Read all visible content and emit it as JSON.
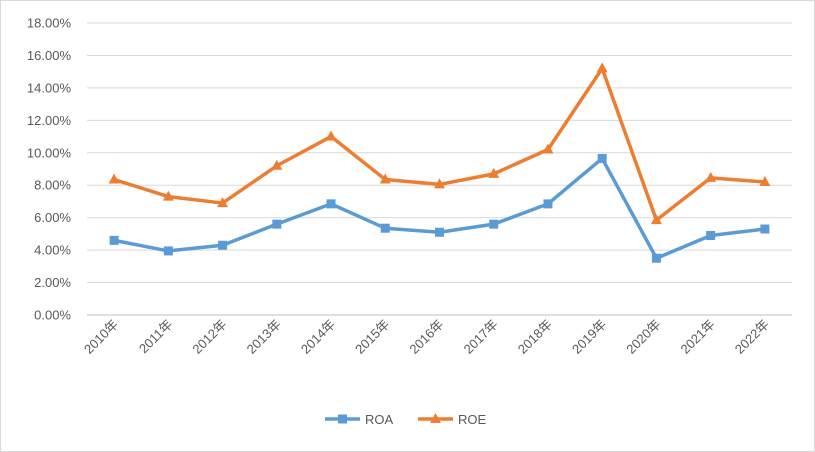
{
  "chart_data": {
    "type": "line",
    "title": "",
    "xlabel": "",
    "ylabel": "",
    "ylim": [
      0,
      18
    ],
    "y_tick_labels": [
      "0.00%",
      "2.00%",
      "4.00%",
      "6.00%",
      "8.00%",
      "10.00%",
      "12.00%",
      "14.00%",
      "16.00%",
      "18.00%"
    ],
    "categories": [
      "2010年",
      "2011年",
      "2012年",
      "2013年",
      "2014年",
      "2015年",
      "2016年",
      "2017年",
      "2018年",
      "2019年",
      "2020年",
      "2021年",
      "2022年"
    ],
    "series": [
      {
        "name": "ROA",
        "color": "#5b9bd5",
        "marker": "square",
        "values": [
          4.6,
          3.95,
          4.3,
          5.6,
          6.85,
          5.35,
          5.1,
          5.6,
          6.85,
          9.65,
          3.5,
          4.9,
          5.3
        ]
      },
      {
        "name": "ROE",
        "color": "#ed7d31",
        "marker": "triangle",
        "values": [
          8.35,
          7.3,
          6.9,
          9.2,
          11.0,
          8.35,
          8.05,
          8.7,
          10.2,
          15.2,
          5.85,
          8.45,
          8.2
        ]
      }
    ],
    "grid": true,
    "legend": "bottom"
  }
}
